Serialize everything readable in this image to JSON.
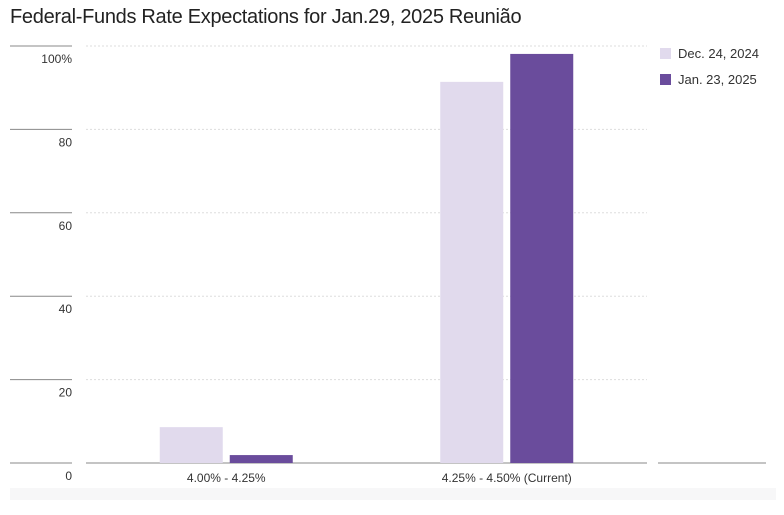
{
  "title": "Federal-Funds Rate Expectations for Jan.29, 2025 Reunião",
  "colors": {
    "series_1": "#e1daed",
    "series_2": "#6a4c9c",
    "grid": "#dddddd",
    "axis": "#888888",
    "text": "#333333"
  },
  "chart_data": {
    "type": "bar",
    "title": "Federal-Funds Rate Expectations for Jan.29, 2025 Reunião",
    "categories": [
      "4.00% - 4.25%",
      "4.25% - 4.50% (Current)"
    ],
    "series": [
      {
        "name": "Dec. 24, 2024",
        "values": [
          8.6,
          91.4
        ]
      },
      {
        "name": "Jan. 23, 2025",
        "values": [
          1.9,
          98.1
        ]
      }
    ],
    "ylim": [
      0,
      100
    ],
    "yticks": [
      "0",
      "20",
      "40",
      "60",
      "80",
      "100%"
    ],
    "ytick_values": [
      0,
      20,
      40,
      60,
      80,
      100
    ],
    "xlabel": "",
    "ylabel": "",
    "grid": true,
    "legend_position": "top-right"
  }
}
